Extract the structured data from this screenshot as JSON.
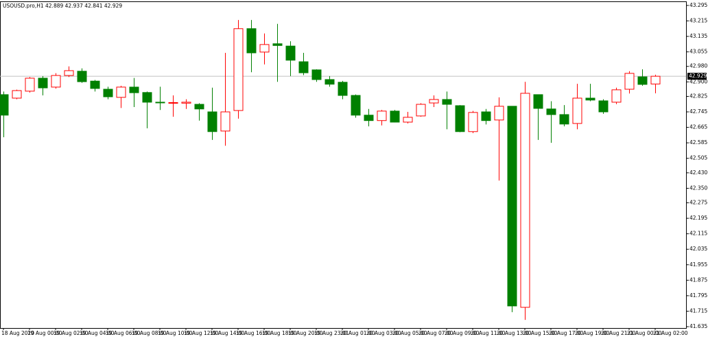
{
  "chart_data": {
    "type": "candlestick",
    "title": "USOUSD.pro,H1  42.889 42.937 42.841 42.929",
    "categories": [
      "18 Aug 2020",
      null,
      "19 Aug 00:00",
      null,
      "19 Aug 02:00",
      null,
      "19 Aug 04:00",
      null,
      "19 Aug 06:00",
      null,
      "19 Aug 08:00",
      null,
      "19 Aug 10:00",
      null,
      "19 Aug 12:00",
      null,
      "19 Aug 14:00",
      null,
      "19 Aug 16:00",
      null,
      "19 Aug 18:00",
      null,
      "19 Aug 20:00",
      null,
      "19 Aug 23:01",
      null,
      "20 Aug 01:00",
      null,
      "20 Aug 03:00",
      null,
      "20 Aug 05:00",
      null,
      "20 Aug 07:00",
      null,
      "20 Aug 09:00",
      null,
      "20 Aug 11:00",
      null,
      "20 Aug 13:00",
      null,
      "20 Aug 15:00",
      null,
      "20 Aug 17:00",
      null,
      "20 Aug 19:00",
      null,
      "20 Aug 21:00",
      null,
      "21 Aug 00:00",
      null,
      "21 Aug 02:00"
    ],
    "open": [
      42.834,
      42.816,
      42.852,
      42.919,
      42.873,
      42.933,
      42.955,
      42.904,
      42.862,
      42.82,
      42.873,
      42.845,
      42.795,
      42.791,
      42.79,
      42.784,
      42.745,
      42.646,
      42.752,
      43.175,
      43.054,
      43.097,
      43.085,
      43.004,
      42.962,
      42.912,
      42.898,
      42.83,
      42.728,
      42.7,
      42.749,
      42.692,
      42.724,
      42.791,
      42.809,
      42.777,
      42.643,
      42.745,
      42.703,
      42.774,
      41.735,
      42.834,
      42.76,
      42.731,
      42.685,
      42.816,
      42.802,
      42.795,
      42.862,
      42.926,
      42.889
    ],
    "high": [
      42.85,
      42.86,
      42.925,
      42.93,
      42.945,
      42.98,
      42.97,
      42.91,
      42.875,
      42.88,
      42.92,
      42.85,
      42.875,
      42.83,
      42.81,
      42.79,
      42.87,
      43.05,
      43.22,
      43.22,
      43.15,
      43.2,
      43.11,
      43.05,
      42.965,
      42.93,
      42.905,
      42.835,
      42.76,
      42.755,
      42.755,
      42.745,
      42.79,
      42.83,
      42.85,
      42.78,
      42.75,
      42.76,
      42.82,
      42.775,
      42.9,
      42.835,
      42.8,
      42.78,
      42.89,
      42.89,
      42.81,
      42.87,
      42.955,
      42.965,
      42.937
    ],
    "low": [
      42.614,
      42.81,
      42.845,
      42.83,
      42.865,
      42.925,
      42.895,
      42.85,
      42.81,
      42.765,
      42.77,
      42.66,
      42.755,
      42.72,
      42.76,
      42.7,
      42.6,
      42.57,
      42.71,
      42.95,
      42.99,
      42.9,
      42.93,
      42.935,
      42.9,
      42.875,
      42.81,
      42.715,
      42.67,
      42.675,
      42.69,
      42.685,
      42.72,
      42.77,
      42.655,
      42.64,
      42.635,
      42.68,
      42.39,
      41.71,
      41.67,
      42.6,
      42.585,
      42.67,
      42.655,
      42.8,
      42.735,
      42.785,
      42.84,
      42.88,
      42.841
    ],
    "close": [
      42.728,
      42.855,
      42.919,
      42.869,
      42.933,
      42.958,
      42.901,
      42.866,
      42.823,
      42.873,
      42.844,
      42.795,
      42.793,
      42.793,
      42.795,
      42.76,
      42.643,
      42.745,
      43.175,
      43.05,
      43.093,
      43.088,
      43.012,
      42.947,
      42.912,
      42.888,
      42.83,
      42.728,
      42.7,
      42.749,
      42.692,
      42.717,
      42.784,
      42.809,
      42.784,
      42.643,
      42.742,
      42.7,
      42.774,
      41.742,
      42.841,
      42.763,
      42.731,
      42.682,
      42.816,
      42.806,
      42.745,
      42.859,
      42.944,
      42.887,
      42.929
    ],
    "up_color": "#ff0000",
    "down_color": "#008000",
    "current_price": 42.929,
    "ylim": [
      41.628,
      43.316
    ],
    "yticks": [
      43.295,
      43.215,
      43.135,
      43.055,
      {
        "value": 42.98,
        "label": "42.980"
      },
      {
        "value": 42.9,
        "label": "42.900"
      },
      42.825,
      42.745,
      42.665,
      42.585,
      42.505,
      {
        "value": 42.43,
        "label": "42.430"
      },
      {
        "value": 42.35,
        "label": "42.350"
      },
      42.275,
      42.195,
      42.115,
      42.035,
      41.955,
      41.875,
      41.795,
      41.715,
      41.635
    ]
  }
}
